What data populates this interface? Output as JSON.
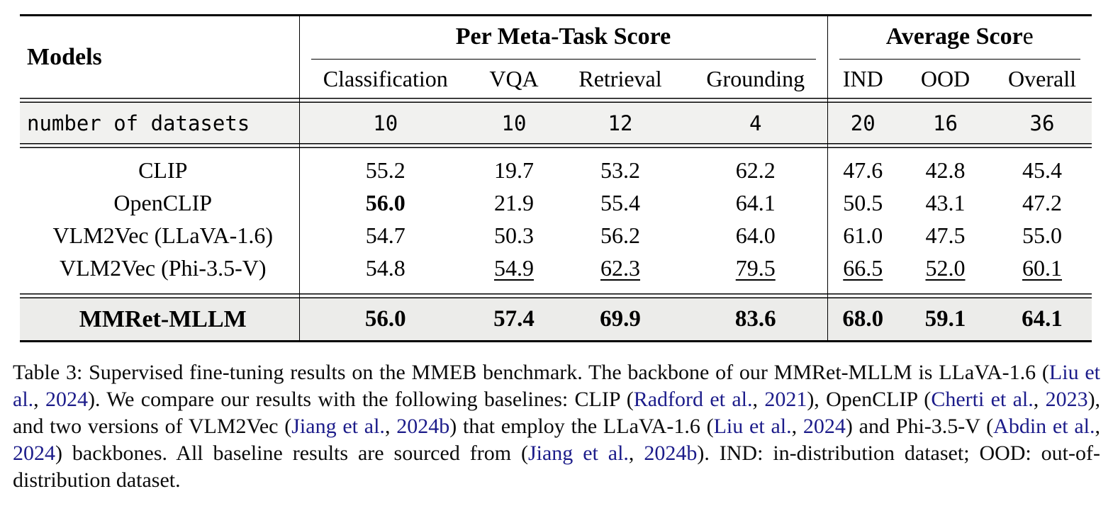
{
  "colors": {
    "citation_blue": "#1c1c8a",
    "shaded_row_gray": "#f1f1ef",
    "highlight_row_gray": "#ececea",
    "rule_black": "#000000"
  },
  "table": {
    "title_visible_in_caption": "Table 3",
    "header": {
      "models_label": "Models",
      "groups": [
        {
          "label_bold": "Per Meta-Task Score",
          "label_tail": "",
          "columns": [
            "Classification",
            "VQA",
            "Retrieval",
            "Grounding"
          ]
        },
        {
          "label_bold": "Average Scor",
          "label_tail": "e",
          "columns": [
            "IND",
            "OOD",
            "Overall"
          ]
        }
      ]
    },
    "dataset_counts": {
      "label": "number of datasets",
      "values": [
        "10",
        "10",
        "12",
        "4",
        "20",
        "16",
        "36"
      ]
    },
    "rows": [
      {
        "model": "CLIP",
        "values": [
          {
            "text": "55.2"
          },
          {
            "text": "19.7"
          },
          {
            "text": "53.2"
          },
          {
            "text": "62.2"
          },
          {
            "text": "47.6"
          },
          {
            "text": "42.8"
          },
          {
            "text": "45.4"
          }
        ]
      },
      {
        "model": "OpenCLIP",
        "values": [
          {
            "text": "56.0",
            "bold": true
          },
          {
            "text": "21.9"
          },
          {
            "text": "55.4"
          },
          {
            "text": "64.1"
          },
          {
            "text": "50.5"
          },
          {
            "text": "43.1"
          },
          {
            "text": "47.2"
          }
        ]
      },
      {
        "model": "VLM2Vec (LLaVA-1.6)",
        "values": [
          {
            "text": "54.7"
          },
          {
            "text": "50.3"
          },
          {
            "text": "56.2"
          },
          {
            "text": "64.0"
          },
          {
            "text": "61.0"
          },
          {
            "text": "47.5"
          },
          {
            "text": "55.0"
          }
        ]
      },
      {
        "model": "VLM2Vec (Phi-3.5-V)",
        "values": [
          {
            "text": "54.8"
          },
          {
            "text": "54.9",
            "underline": true
          },
          {
            "text": "62.3",
            "underline": true
          },
          {
            "text": "79.5",
            "underline": true
          },
          {
            "text": "66.5",
            "underline": true
          },
          {
            "text": "52.0",
            "underline": true
          },
          {
            "text": "60.1",
            "underline": true
          }
        ]
      }
    ],
    "highlight_row": {
      "model": "MMRet-MLLM",
      "values": [
        {
          "text": "56.0",
          "bold": true
        },
        {
          "text": "57.4",
          "bold": true
        },
        {
          "text": "69.9",
          "bold": true
        },
        {
          "text": "83.6",
          "bold": true
        },
        {
          "text": "68.0",
          "bold": true
        },
        {
          "text": "59.1",
          "bold": true
        },
        {
          "text": "64.1",
          "bold": true
        }
      ]
    }
  },
  "caption": {
    "segments": [
      {
        "text": "Table 3:  Supervised fine-tuning results on the MMEB benchmark.  The backbone of our MMRet-MLLM is LLaVA-1.6 ("
      },
      {
        "text": "Liu et al.",
        "cite": true
      },
      {
        "text": ", "
      },
      {
        "text": "2024",
        "cite": true
      },
      {
        "text": "). We compare our results with the following baselines: CLIP ("
      },
      {
        "text": "Radford et al.",
        "cite": true
      },
      {
        "text": ", "
      },
      {
        "text": "2021",
        "cite": true
      },
      {
        "text": "), OpenCLIP ("
      },
      {
        "text": "Cherti et al.",
        "cite": true
      },
      {
        "text": ", "
      },
      {
        "text": "2023",
        "cite": true
      },
      {
        "text": "), and two versions of VLM2Vec ("
      },
      {
        "text": "Jiang et al.",
        "cite": true
      },
      {
        "text": ", "
      },
      {
        "text": "2024b",
        "cite": true
      },
      {
        "text": ") that employ the LLaVA-1.6 ("
      },
      {
        "text": "Liu et al.",
        "cite": true
      },
      {
        "text": ", "
      },
      {
        "text": "2024",
        "cite": true
      },
      {
        "text": ") and Phi-3.5-V ("
      },
      {
        "text": "Abdin et al.",
        "cite": true
      },
      {
        "text": ", "
      },
      {
        "text": "2024",
        "cite": true
      },
      {
        "text": ") backbones.  All baseline results are sourced from ("
      },
      {
        "text": "Jiang et al.",
        "cite": true
      },
      {
        "text": ", "
      },
      {
        "text": "2024b",
        "cite": true
      },
      {
        "text": "). IND: in-distribution dataset; OOD: out-of-distribution dataset."
      }
    ]
  }
}
